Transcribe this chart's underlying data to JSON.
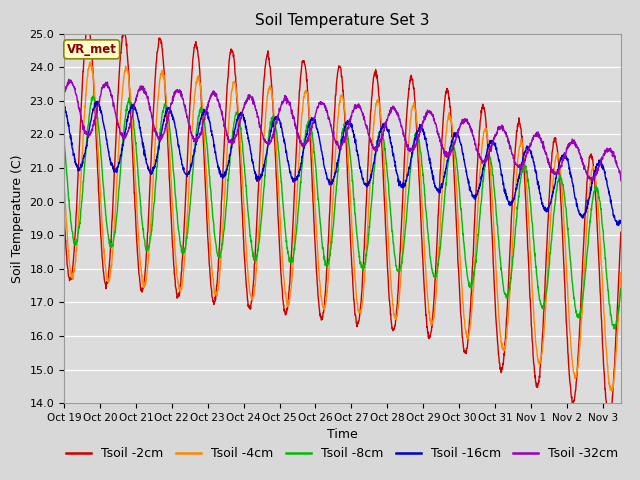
{
  "title": "Soil Temperature Set 3",
  "xlabel": "Time",
  "ylabel": "Soil Temperature (C)",
  "ylim": [
    14.0,
    25.0
  ],
  "yticks": [
    14.0,
    15.0,
    16.0,
    17.0,
    18.0,
    19.0,
    20.0,
    21.0,
    22.0,
    23.0,
    24.0,
    25.0
  ],
  "xtick_labels": [
    "Oct 19",
    "Oct 20",
    "Oct 21",
    "Oct 22",
    "Oct 23",
    "Oct 24",
    "Oct 25",
    "Oct 26",
    "Oct 27",
    "Oct 28",
    "Oct 29",
    "Oct 30",
    "Oct 31",
    "Nov 1",
    "Nov 2",
    "Nov 3"
  ],
  "series_names": [
    "Tsoil -2cm",
    "Tsoil -4cm",
    "Tsoil -8cm",
    "Tsoil -16cm",
    "Tsoil -32cm"
  ],
  "series_colors": [
    "#cc0000",
    "#ff8800",
    "#00bb00",
    "#0000cc",
    "#9900bb"
  ],
  "annotation": "VR_met",
  "fig_bg": "#d8d8d8",
  "plot_bg": "#dcdcdc",
  "title_fontsize": 11,
  "tick_fontsize": 8,
  "axis_fontsize": 9,
  "legend_fontsize": 9,
  "n_points": 2000,
  "n_days": 15.5
}
